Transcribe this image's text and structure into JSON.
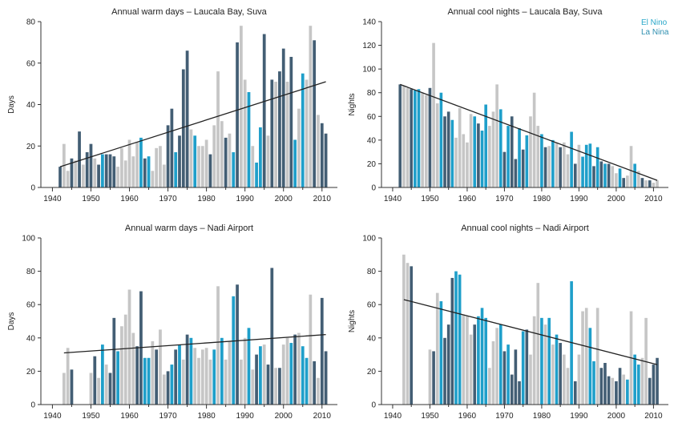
{
  "legend": {
    "el_nino": "El Nino",
    "la_nina": "La Nina"
  },
  "colors": {
    "el_nino": "#1f9fca",
    "la_nina": "#435e74",
    "neutral": "#c6c6c6",
    "trend": "#222222",
    "axis": "#333333"
  },
  "chart_data": [
    {
      "type": "bar",
      "title": "Annual warm days – Laucala Bay, Suva",
      "xlabel": "",
      "ylabel": "Days",
      "xlim": [
        1937,
        2014
      ],
      "ylim": [
        0,
        80
      ],
      "xticks": [
        1940,
        1950,
        1960,
        1970,
        1980,
        1990,
        2000,
        2010
      ],
      "yticks": [
        0,
        20,
        40,
        60,
        80
      ],
      "x": [
        1942,
        1943,
        1944,
        1945,
        1946,
        1947,
        1948,
        1949,
        1950,
        1951,
        1952,
        1953,
        1954,
        1955,
        1956,
        1957,
        1958,
        1959,
        1960,
        1961,
        1962,
        1963,
        1964,
        1965,
        1966,
        1967,
        1968,
        1969,
        1970,
        1971,
        1972,
        1973,
        1974,
        1975,
        1976,
        1977,
        1978,
        1979,
        1980,
        1981,
        1982,
        1983,
        1984,
        1985,
        1986,
        1987,
        1988,
        1989,
        1990,
        1991,
        1992,
        1993,
        1994,
        1995,
        1996,
        1997,
        1998,
        1999,
        2000,
        2001,
        2002,
        2003,
        2004,
        2005,
        2006,
        2007,
        2008,
        2009,
        2010,
        2011
      ],
      "values": [
        10,
        21,
        8,
        14,
        13,
        27,
        11,
        17,
        21,
        14,
        11,
        16,
        16,
        16,
        15,
        10,
        19,
        13,
        23,
        15,
        22,
        24,
        14,
        15,
        8,
        19,
        20,
        11,
        30,
        38,
        17,
        25,
        57,
        66,
        28,
        25,
        20,
        20,
        23,
        16,
        30,
        56,
        32,
        24,
        26,
        17,
        70,
        78,
        52,
        46,
        20,
        12,
        29,
        74,
        25,
        52,
        51,
        56,
        67,
        51,
        63,
        23,
        38,
        55,
        52,
        78,
        71,
        35,
        31,
        26
      ],
      "enso": [
        "la_nina",
        "neutral",
        "neutral",
        "la_nina",
        "neutral",
        "la_nina",
        "neutral",
        "la_nina",
        "la_nina",
        "neutral",
        "la_nina",
        "el_nino",
        "la_nina",
        "la_nina",
        "la_nina",
        "neutral",
        "neutral",
        "neutral",
        "neutral",
        "neutral",
        "neutral",
        "el_nino",
        "la_nina",
        "el_nino",
        "neutral",
        "neutral",
        "neutral",
        "neutral",
        "la_nina",
        "la_nina",
        "el_nino",
        "la_nina",
        "la_nina",
        "la_nina",
        "neutral",
        "el_nino",
        "neutral",
        "neutral",
        "neutral",
        "la_nina",
        "neutral",
        "neutral",
        "neutral",
        "la_nina",
        "neutral",
        "el_nino",
        "la_nina",
        "neutral",
        "neutral",
        "el_nino",
        "neutral",
        "el_nino",
        "el_nino",
        "la_nina",
        "neutral",
        "la_nina",
        "neutral",
        "la_nina",
        "la_nina",
        "neutral",
        "la_nina",
        "el_nino",
        "neutral",
        "el_nino",
        "neutral",
        "neutral",
        "la_nina",
        "neutral",
        "la_nina",
        "la_nina"
      ],
      "trend": [
        [
          1942,
          10
        ],
        [
          2011,
          51
        ]
      ]
    },
    {
      "type": "bar",
      "title": "Annual cool nights – Laucala Bay, Suva",
      "xlabel": "",
      "ylabel": "Nights",
      "xlim": [
        1937,
        2014
      ],
      "ylim": [
        0,
        140
      ],
      "xticks": [
        1940,
        1950,
        1960,
        1970,
        1980,
        1990,
        2000,
        2010
      ],
      "yticks": [
        0,
        20,
        40,
        60,
        80,
        100,
        120,
        140
      ],
      "x": [
        1942,
        1943,
        1944,
        1945,
        1946,
        1947,
        1948,
        1949,
        1950,
        1951,
        1952,
        1953,
        1954,
        1955,
        1956,
        1957,
        1958,
        1959,
        1960,
        1961,
        1962,
        1963,
        1964,
        1965,
        1966,
        1967,
        1968,
        1969,
        1970,
        1971,
        1972,
        1973,
        1974,
        1975,
        1976,
        1977,
        1978,
        1979,
        1980,
        1981,
        1982,
        1983,
        1984,
        1985,
        1986,
        1987,
        1988,
        1989,
        1990,
        1991,
        1992,
        1993,
        1994,
        1995,
        1996,
        1997,
        1998,
        1999,
        2000,
        2001,
        2002,
        2003,
        2004,
        2005,
        2006,
        2007,
        2008,
        2009,
        2010,
        2011
      ],
      "values": [
        87,
        86,
        84,
        83,
        82,
        83,
        80,
        78,
        84,
        122,
        71,
        80,
        60,
        64,
        57,
        42,
        67,
        45,
        38,
        62,
        60,
        54,
        48,
        70,
        52,
        64,
        87,
        66,
        30,
        52,
        60,
        24,
        50,
        32,
        44,
        60,
        80,
        52,
        45,
        34,
        35,
        40,
        38,
        34,
        38,
        28,
        47,
        20,
        36,
        26,
        36,
        37,
        18,
        34,
        22,
        20,
        20,
        18,
        12,
        16,
        8,
        10,
        35,
        20,
        14,
        8,
        6,
        6,
        4,
        6
      ],
      "enso": [
        "la_nina",
        "neutral",
        "neutral",
        "la_nina",
        "el_nino",
        "el_nino",
        "neutral",
        "neutral",
        "la_nina",
        "neutral",
        "neutral",
        "el_nino",
        "la_nina",
        "la_nina",
        "el_nino",
        "neutral",
        "neutral",
        "neutral",
        "neutral",
        "neutral",
        "el_nino",
        "la_nina",
        "el_nino",
        "el_nino",
        "neutral",
        "neutral",
        "neutral",
        "el_nino",
        "la_nina",
        "el_nino",
        "la_nina",
        "la_nina",
        "el_nino",
        "la_nina",
        "el_nino",
        "neutral",
        "neutral",
        "neutral",
        "el_nino",
        "la_nina",
        "neutral",
        "el_nino",
        "neutral",
        "la_nina",
        "neutral",
        "neutral",
        "el_nino",
        "la_nina",
        "neutral",
        "el_nino",
        "el_nino",
        "el_nino",
        "la_nina",
        "el_nino",
        "la_nina",
        "el_nino",
        "la_nina",
        "neutral",
        "neutral",
        "el_nino",
        "la_nina",
        "neutral",
        "neutral",
        "el_nino",
        "neutral",
        "la_nina",
        "neutral",
        "la_nina",
        "neutral",
        "neutral"
      ],
      "trend": [
        [
          1942,
          87
        ],
        [
          2011,
          6
        ]
      ]
    },
    {
      "type": "bar",
      "title": "Annual warm days – Nadi Airport",
      "xlabel": "",
      "ylabel": "Days",
      "xlim": [
        1937,
        2014
      ],
      "ylim": [
        0,
        100
      ],
      "xticks": [
        1940,
        1950,
        1960,
        1970,
        1980,
        1990,
        2000,
        2010
      ],
      "yticks": [
        0,
        20,
        40,
        60,
        80,
        100
      ],
      "x": [
        1943,
        1944,
        1945,
        1950,
        1951,
        1952,
        1953,
        1954,
        1955,
        1956,
        1957,
        1958,
        1959,
        1960,
        1961,
        1962,
        1963,
        1964,
        1965,
        1966,
        1967,
        1968,
        1969,
        1970,
        1971,
        1972,
        1973,
        1974,
        1975,
        1976,
        1977,
        1978,
        1979,
        1980,
        1981,
        1982,
        1983,
        1984,
        1985,
        1986,
        1987,
        1988,
        1989,
        1990,
        1991,
        1992,
        1993,
        1994,
        1995,
        1996,
        1997,
        1998,
        1999,
        2000,
        2001,
        2002,
        2003,
        2004,
        2005,
        2006,
        2007,
        2008,
        2009,
        2010,
        2011
      ],
      "values": [
        19,
        34,
        21,
        19,
        29,
        16,
        36,
        24,
        19,
        52,
        32,
        47,
        54,
        69,
        43,
        35,
        68,
        28,
        28,
        38,
        33,
        45,
        18,
        20,
        24,
        33,
        36,
        27,
        42,
        40,
        34,
        28,
        33,
        34,
        27,
        33,
        71,
        40,
        27,
        38,
        65,
        72,
        27,
        40,
        46,
        21,
        30,
        35,
        36,
        24,
        82,
        22,
        22,
        36,
        40,
        37,
        42,
        43,
        35,
        28,
        66,
        26,
        16,
        64,
        32
      ],
      "enso": [
        "neutral",
        "neutral",
        "la_nina",
        "neutral",
        "la_nina",
        "neutral",
        "el_nino",
        "neutral",
        "la_nina",
        "la_nina",
        "el_nino",
        "neutral",
        "neutral",
        "neutral",
        "neutral",
        "la_nina",
        "la_nina",
        "el_nino",
        "el_nino",
        "neutral",
        "la_nina",
        "neutral",
        "neutral",
        "la_nina",
        "el_nino",
        "la_nina",
        "el_nino",
        "neutral",
        "la_nina",
        "el_nino",
        "neutral",
        "neutral",
        "neutral",
        "neutral",
        "neutral",
        "el_nino",
        "neutral",
        "el_nino",
        "neutral",
        "neutral",
        "el_nino",
        "la_nina",
        "neutral",
        "neutral",
        "el_nino",
        "neutral",
        "la_nina",
        "el_nino",
        "neutral",
        "la_nina",
        "la_nina",
        "neutral",
        "la_nina",
        "neutral",
        "neutral",
        "el_nino",
        "la_nina",
        "neutral",
        "el_nino",
        "el_nino",
        "neutral",
        "la_nina",
        "neutral",
        "la_nina",
        "la_nina"
      ],
      "trend": [
        [
          1943,
          31
        ],
        [
          2011,
          42
        ]
      ]
    },
    {
      "type": "bar",
      "title": "Annual cool nights – Nadi Airport",
      "xlabel": "",
      "ylabel": "Nights",
      "xlim": [
        1937,
        2014
      ],
      "ylim": [
        0,
        100
      ],
      "xticks": [
        1940,
        1950,
        1960,
        1970,
        1980,
        1990,
        2000,
        2010
      ],
      "yticks": [
        0,
        20,
        40,
        60,
        80,
        100
      ],
      "x": [
        1943,
        1944,
        1945,
        1950,
        1951,
        1952,
        1953,
        1954,
        1955,
        1956,
        1957,
        1958,
        1959,
        1960,
        1961,
        1962,
        1963,
        1964,
        1965,
        1966,
        1967,
        1968,
        1969,
        1970,
        1971,
        1972,
        1973,
        1974,
        1975,
        1976,
        1977,
        1978,
        1979,
        1980,
        1981,
        1982,
        1983,
        1984,
        1985,
        1986,
        1987,
        1988,
        1989,
        1990,
        1991,
        1992,
        1993,
        1994,
        1995,
        1996,
        1997,
        1998,
        1999,
        2000,
        2001,
        2002,
        2003,
        2004,
        2005,
        2006,
        2007,
        2008,
        2009,
        2010,
        2011
      ],
      "values": [
        90,
        85,
        83,
        33,
        32,
        67,
        62,
        40,
        48,
        76,
        80,
        78,
        54,
        53,
        42,
        48,
        53,
        58,
        52,
        22,
        38,
        46,
        48,
        32,
        36,
        18,
        33,
        14,
        44,
        45,
        30,
        53,
        73,
        52,
        48,
        52,
        36,
        42,
        37,
        30,
        22,
        74,
        14,
        30,
        56,
        58,
        46,
        26,
        58,
        22,
        25,
        17,
        16,
        14,
        22,
        18,
        15,
        56,
        30,
        24,
        28,
        52,
        16,
        24,
        28
      ],
      "enso": [
        "neutral",
        "neutral",
        "la_nina",
        "neutral",
        "la_nina",
        "neutral",
        "el_nino",
        "la_nina",
        "la_nina",
        "la_nina",
        "el_nino",
        "el_nino",
        "neutral",
        "neutral",
        "neutral",
        "la_nina",
        "el_nino",
        "el_nino",
        "el_nino",
        "neutral",
        "neutral",
        "neutral",
        "el_nino",
        "la_nina",
        "el_nino",
        "la_nina",
        "la_nina",
        "la_nina",
        "el_nino",
        "la_nina",
        "neutral",
        "neutral",
        "neutral",
        "el_nino",
        "neutral",
        "el_nino",
        "neutral",
        "el_nino",
        "la_nina",
        "neutral",
        "neutral",
        "el_nino",
        "la_nina",
        "neutral",
        "neutral",
        "neutral",
        "el_nino",
        "el_nino",
        "neutral",
        "la_nina",
        "la_nina",
        "la_nina",
        "neutral",
        "la_nina",
        "la_nina",
        "neutral",
        "el_nino",
        "neutral",
        "el_nino",
        "el_nino",
        "neutral",
        "neutral",
        "la_nina",
        "la_nina",
        "la_nina"
      ],
      "trend": [
        [
          1943,
          63
        ],
        [
          2011,
          24
        ]
      ]
    }
  ]
}
